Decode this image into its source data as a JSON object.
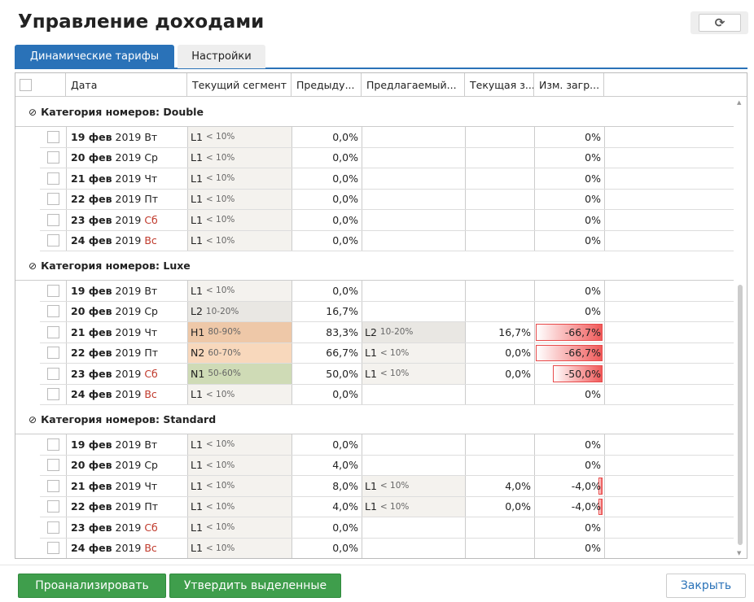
{
  "title": "Управление доходами",
  "tabs": [
    "Динамические тарифы",
    "Настройки"
  ],
  "columns": [
    "Дата",
    "Текущий сегмент",
    "Предыду...",
    "Предлагаемый...",
    "Текущая з...",
    "Изм. загр..."
  ],
  "colors": {
    "accent": "#2a72b8",
    "green": "#3f9e4c",
    "L1": "#f4f2ee",
    "L2": "#e9e7e3",
    "H1": "#eec8a8",
    "N2": "#f8d8bc",
    "N1": "#cfdbb6"
  },
  "groups": [
    {
      "label": "Категория номеров: Double",
      "rows": [
        {
          "day": "19 фев",
          "year": "2019",
          "wd": "Вт",
          "we": false,
          "seg": "L1",
          "segr": "< 10%",
          "prev": "0,0%",
          "prop": "",
          "propr": "",
          "cur": "",
          "chg": "0%",
          "chgv": 0
        },
        {
          "day": "20 фев",
          "year": "2019",
          "wd": "Ср",
          "we": false,
          "seg": "L1",
          "segr": "< 10%",
          "prev": "0,0%",
          "prop": "",
          "propr": "",
          "cur": "",
          "chg": "0%",
          "chgv": 0
        },
        {
          "day": "21 фев",
          "year": "2019",
          "wd": "Чт",
          "we": false,
          "seg": "L1",
          "segr": "< 10%",
          "prev": "0,0%",
          "prop": "",
          "propr": "",
          "cur": "",
          "chg": "0%",
          "chgv": 0
        },
        {
          "day": "22 фев",
          "year": "2019",
          "wd": "Пт",
          "we": false,
          "seg": "L1",
          "segr": "< 10%",
          "prev": "0,0%",
          "prop": "",
          "propr": "",
          "cur": "",
          "chg": "0%",
          "chgv": 0
        },
        {
          "day": "23 фев",
          "year": "2019",
          "wd": "Сб",
          "we": true,
          "seg": "L1",
          "segr": "< 10%",
          "prev": "0,0%",
          "prop": "",
          "propr": "",
          "cur": "",
          "chg": "0%",
          "chgv": 0
        },
        {
          "day": "24 фев",
          "year": "2019",
          "wd": "Вс",
          "we": true,
          "seg": "L1",
          "segr": "< 10%",
          "prev": "0,0%",
          "prop": "",
          "propr": "",
          "cur": "",
          "chg": "0%",
          "chgv": 0
        }
      ]
    },
    {
      "label": "Категория номеров: Luxe",
      "rows": [
        {
          "day": "19 фев",
          "year": "2019",
          "wd": "Вт",
          "we": false,
          "seg": "L1",
          "segr": "< 10%",
          "prev": "0,0%",
          "prop": "",
          "propr": "",
          "cur": "",
          "chg": "0%",
          "chgv": 0
        },
        {
          "day": "20 фев",
          "year": "2019",
          "wd": "Ср",
          "we": false,
          "seg": "L2",
          "segr": "10-20%",
          "prev": "16,7%",
          "prop": "",
          "propr": "",
          "cur": "",
          "chg": "0%",
          "chgv": 0
        },
        {
          "day": "21 фев",
          "year": "2019",
          "wd": "Чт",
          "we": false,
          "seg": "H1",
          "segr": "80-90%",
          "prev": "83,3%",
          "prop": "L2",
          "propr": "10-20%",
          "cur": "16,7%",
          "chg": "-66,7%",
          "chgv": -66.7
        },
        {
          "day": "22 фев",
          "year": "2019",
          "wd": "Пт",
          "we": false,
          "seg": "N2",
          "segr": "60-70%",
          "prev": "66,7%",
          "prop": "L1",
          "propr": "< 10%",
          "cur": "0,0%",
          "chg": "-66,7%",
          "chgv": -66.7
        },
        {
          "day": "23 фев",
          "year": "2019",
          "wd": "Сб",
          "we": true,
          "seg": "N1",
          "segr": "50-60%",
          "prev": "50,0%",
          "prop": "L1",
          "propr": "< 10%",
          "cur": "0,0%",
          "chg": "-50,0%",
          "chgv": -50
        },
        {
          "day": "24 фев",
          "year": "2019",
          "wd": "Вс",
          "we": true,
          "seg": "L1",
          "segr": "< 10%",
          "prev": "0,0%",
          "prop": "",
          "propr": "",
          "cur": "",
          "chg": "0%",
          "chgv": 0
        }
      ]
    },
    {
      "label": "Категория номеров: Standard",
      "rows": [
        {
          "day": "19 фев",
          "year": "2019",
          "wd": "Вт",
          "we": false,
          "seg": "L1",
          "segr": "< 10%",
          "prev": "0,0%",
          "prop": "",
          "propr": "",
          "cur": "",
          "chg": "0%",
          "chgv": 0
        },
        {
          "day": "20 фев",
          "year": "2019",
          "wd": "Ср",
          "we": false,
          "seg": "L1",
          "segr": "< 10%",
          "prev": "4,0%",
          "prop": "",
          "propr": "",
          "cur": "",
          "chg": "0%",
          "chgv": 0
        },
        {
          "day": "21 фев",
          "year": "2019",
          "wd": "Чт",
          "we": false,
          "seg": "L1",
          "segr": "< 10%",
          "prev": "8,0%",
          "prop": "L1",
          "propr": "< 10%",
          "cur": "4,0%",
          "chg": "-4,0%",
          "chgv": -4
        },
        {
          "day": "22 фев",
          "year": "2019",
          "wd": "Пт",
          "we": false,
          "seg": "L1",
          "segr": "< 10%",
          "prev": "4,0%",
          "prop": "L1",
          "propr": "< 10%",
          "cur": "0,0%",
          "chg": "-4,0%",
          "chgv": -4
        },
        {
          "day": "23 фев",
          "year": "2019",
          "wd": "Сб",
          "we": true,
          "seg": "L1",
          "segr": "< 10%",
          "prev": "0,0%",
          "prop": "",
          "propr": "",
          "cur": "",
          "chg": "0%",
          "chgv": 0
        },
        {
          "day": "24 фев",
          "year": "2019",
          "wd": "Вс",
          "we": true,
          "seg": "L1",
          "segr": "< 10%",
          "prev": "0,0%",
          "prop": "",
          "propr": "",
          "cur": "",
          "chg": "0%",
          "chgv": 0
        }
      ]
    }
  ],
  "buttons": {
    "analyze": "Проанализировать",
    "approve": "Утвердить выделенные",
    "close": "Закрыть"
  }
}
